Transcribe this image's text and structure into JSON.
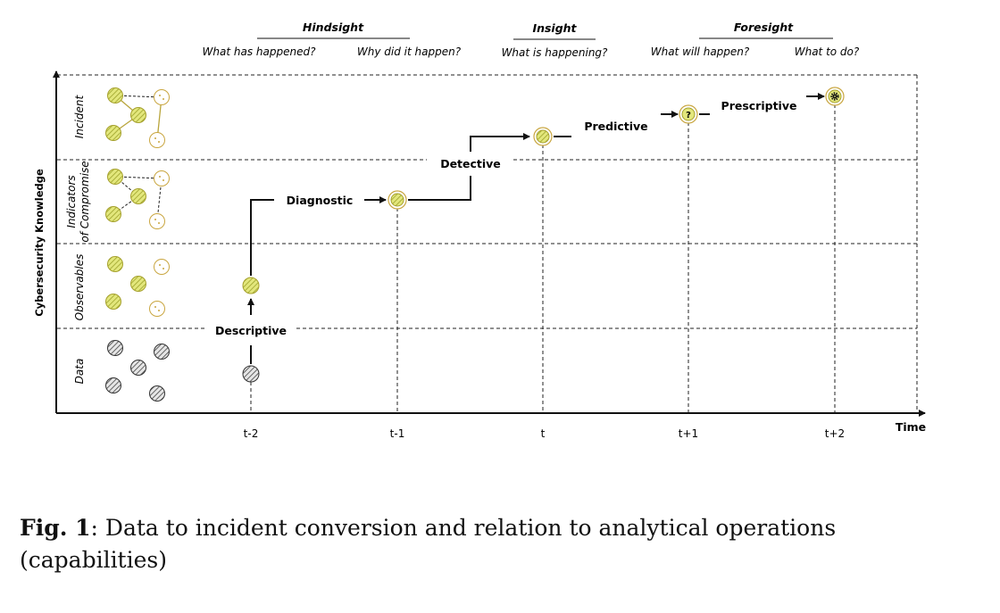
{
  "headers": {
    "hindsight": "Hindsight",
    "insight": "Insight",
    "foresight": "Foresight"
  },
  "questions": {
    "what_happened": "What has happened?",
    "why_happened": "Why did it happen?",
    "what_happening": "What is happening?",
    "what_will_happen": "What will happen?",
    "what_to_do": "What to do?"
  },
  "levels": {
    "incident": "Incident",
    "ioc_line1": "Indicators",
    "ioc_line2": "of Compromise",
    "observables": "Observables",
    "data": "Data"
  },
  "y_axis_label": "Cybersecurity Knowledge",
  "x_axis_label": "Time",
  "time_ticks": [
    "t-2",
    "t-1",
    "t",
    "t+1",
    "t+2"
  ],
  "operations": {
    "descriptive": "Descriptive",
    "diagnostic": "Diagnostic",
    "detective": "Detective",
    "predictive": "Predictive",
    "prescriptive": "Prescriptive"
  },
  "markers": {
    "predictive_symbol": "?"
  },
  "caption": {
    "label": "Fig. 1",
    "text": ": Data to incident conversion and relation to analytical operations (capabilities)"
  },
  "colors": {
    "observable_fill": "#cfd65a",
    "observable_stroke": "#b0ad3a",
    "data_stroke": "#333333",
    "ring_stroke": "#c9a640"
  }
}
